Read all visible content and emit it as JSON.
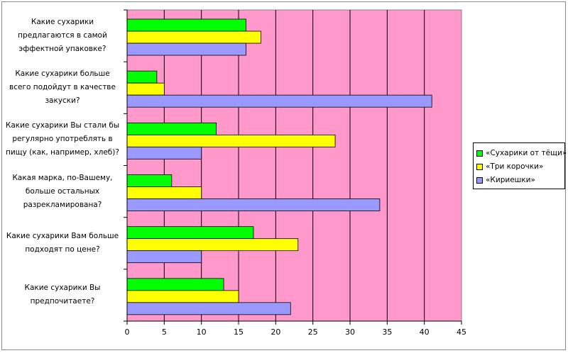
{
  "chart_data": {
    "type": "bar",
    "orientation": "horizontal",
    "categories": [
      "Какие сухарики предлагаются в самой эффектной упаковке?",
      "Какие сухарики больше всего подойдут в качестве закуски?",
      "Какие сухарики Вы стали бы регулярно употреблять в пищу (как, например, хлеб)?",
      "Какая марка, по-Вашему, больше остальных разрекламирована?",
      "Какие сухарики Вам больше подходят по цене?",
      "Какие сухарики Вы предпочитаете?"
    ],
    "category_lines": [
      [
        "Какие сухарики",
        "предлагаются в самой",
        "эффектной упаковке?"
      ],
      [
        "Какие сухарики больше",
        "всего подойдут в качестве",
        "закуски?"
      ],
      [
        "Какие сухарики Вы стали бы",
        "регулярно употреблять в",
        "пищу (как, например, хлеб)?"
      ],
      [
        "Какая марка, по-Вашему,",
        "больше остальных",
        "разрекламирована?"
      ],
      [
        "Какие сухарики Вам больше",
        "подходят по цене?"
      ],
      [
        "Какие сухарики Вы",
        "предпочитаете?"
      ]
    ],
    "series": [
      {
        "name": "«Сухарики от тёщи»",
        "color": "#00ff00",
        "values": [
          16,
          4,
          12,
          6,
          17,
          13
        ]
      },
      {
        "name": "«Три корочки»",
        "color": "#ffff00",
        "values": [
          18,
          5,
          28,
          10,
          23,
          15
        ]
      },
      {
        "name": "«Кириешки»",
        "color": "#9999ff",
        "values": [
          16,
          41,
          10,
          34,
          10,
          22
        ]
      }
    ],
    "xlim": [
      0,
      45
    ],
    "xticks": [
      0,
      5,
      10,
      15,
      20,
      25,
      30,
      35,
      40,
      45
    ],
    "grid": true,
    "plot_background": "#ff99cc",
    "legend_position": "right"
  }
}
